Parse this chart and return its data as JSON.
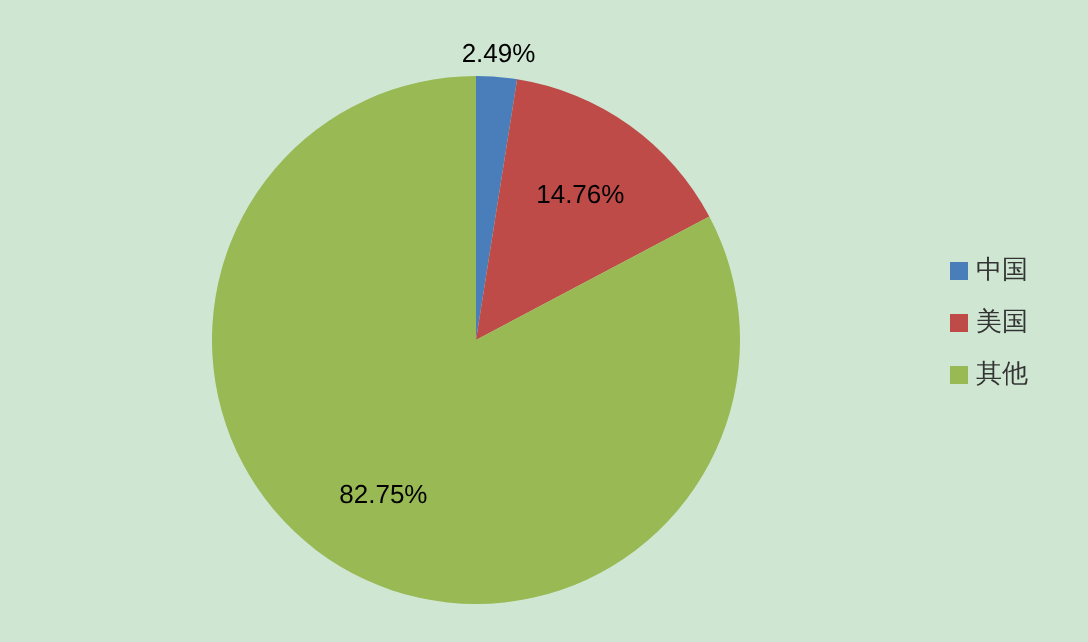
{
  "chart_data": {
    "type": "pie",
    "categories": [
      "中国",
      "美国",
      "其他"
    ],
    "values": [
      2.49,
      14.76,
      82.75
    ],
    "colors": [
      "#4a7ebb",
      "#be4b48",
      "#98b954"
    ],
    "value_labels": [
      "2.49%",
      "14.76%",
      "82.75%"
    ],
    "legend": "right"
  }
}
